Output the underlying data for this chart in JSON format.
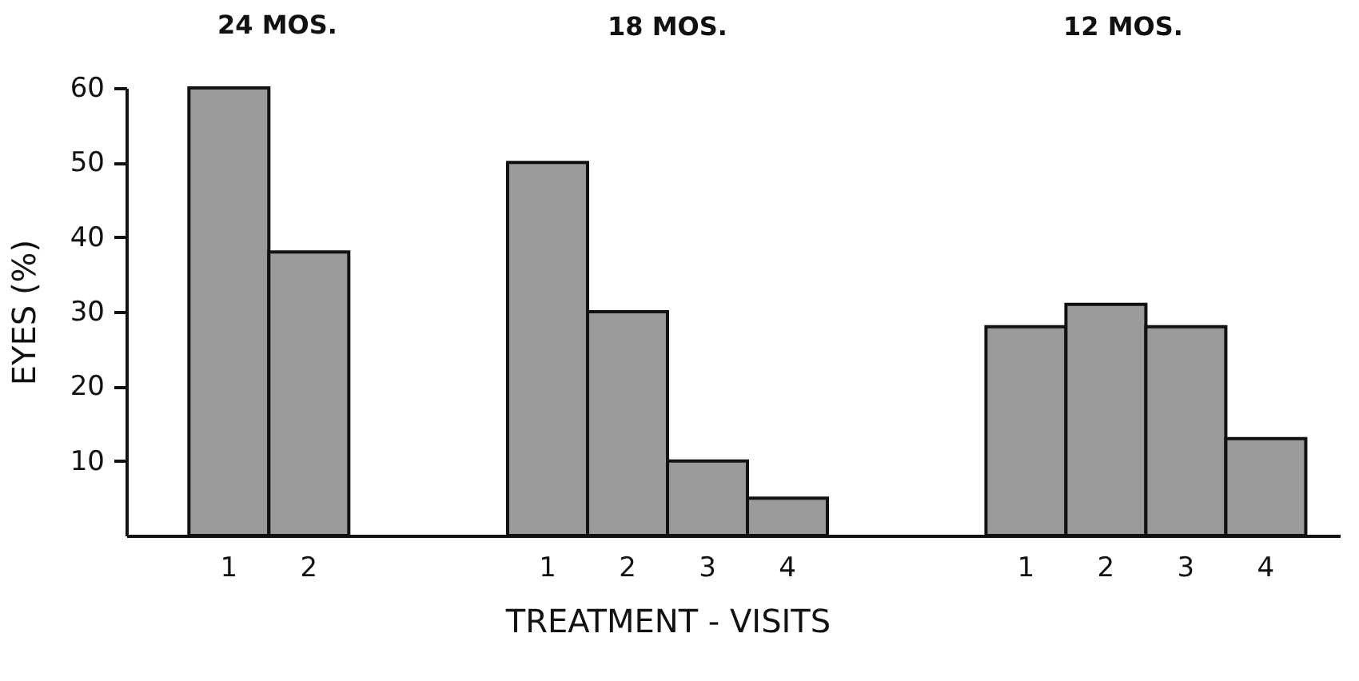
{
  "chart_data": [
    {
      "type": "bar",
      "title": "24 MOS.",
      "ylabel": "EYES (%)",
      "categories": [
        "1",
        "2"
      ],
      "values": [
        60,
        38
      ],
      "color": "#9a9a9a",
      "ylim": [
        0,
        60
      ],
      "yticks": [
        10,
        20,
        30,
        40,
        50,
        60
      ],
      "grid": false
    },
    {
      "type": "bar",
      "title": "18 MOS.",
      "xlabel": "TREATMENT - VISITS",
      "categories": [
        "1",
        "2",
        "3",
        "4"
      ],
      "values": [
        50,
        30,
        10,
        5
      ],
      "color": "#9a9a9a",
      "ylim": [
        0,
        60
      ],
      "yticks": [
        10,
        20,
        30,
        40,
        50,
        60
      ],
      "tick_labels": "x",
      "grid": false
    },
    {
      "type": "bar",
      "title": "12 MOS.",
      "categories": [
        "1",
        "2",
        "3",
        "4"
      ],
      "values": [
        28,
        31,
        28,
        13
      ],
      "color": "#9a9a9a",
      "ylim": [
        0,
        60
      ],
      "yticks": [
        10,
        20,
        30,
        40,
        50,
        60
      ],
      "tick_labels": "x",
      "grid": false
    }
  ]
}
